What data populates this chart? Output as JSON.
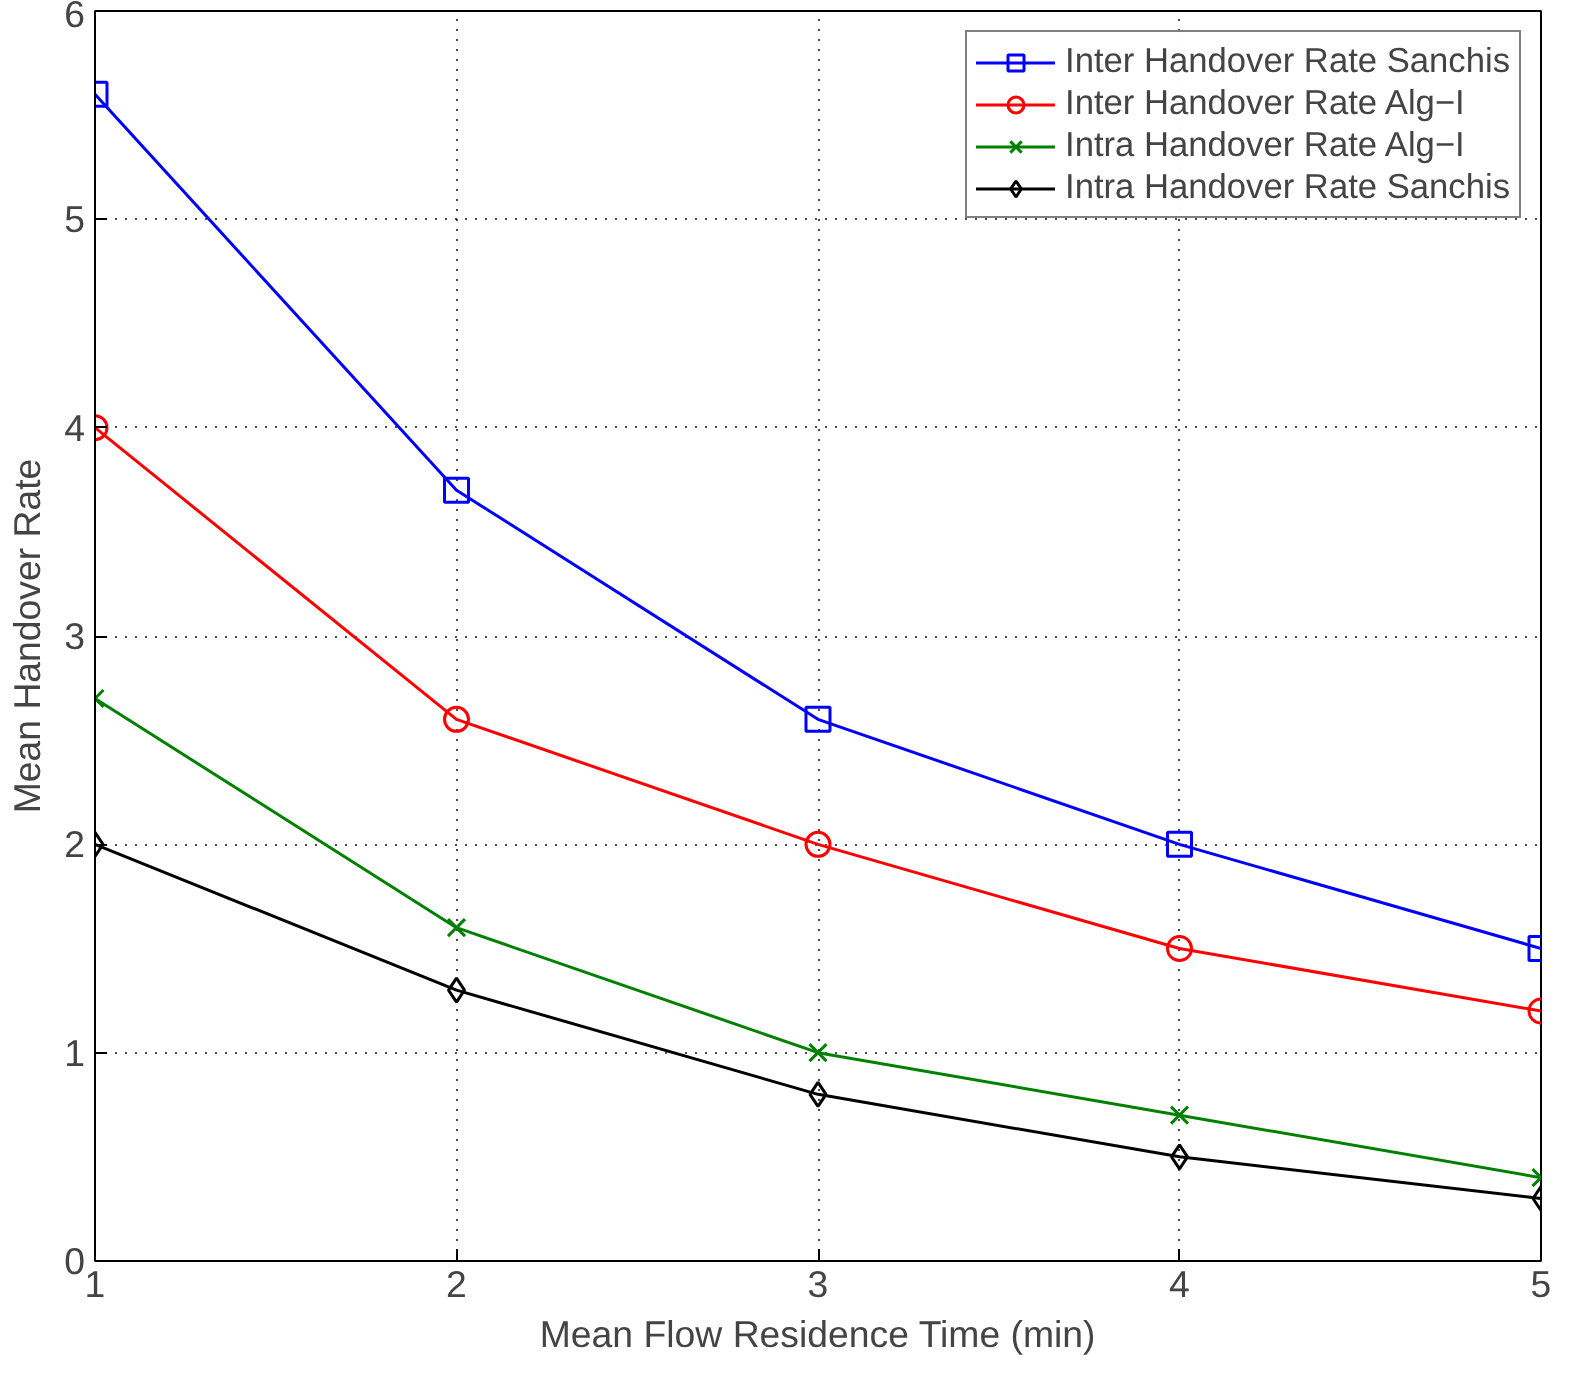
{
  "chart_data": {
    "type": "line",
    "xlabel": "Mean Flow Residence Time (min)",
    "ylabel": "Mean Handover Rate",
    "x": [
      1,
      2,
      3,
      4,
      5
    ],
    "xlim": [
      1,
      5
    ],
    "ylim": [
      0,
      6
    ],
    "xticks": [
      1,
      2,
      3,
      4,
      5
    ],
    "yticks": [
      0,
      1,
      2,
      3,
      4,
      5,
      6
    ],
    "grid": true,
    "legend": "top right",
    "line_style": "solid",
    "series": [
      {
        "name": "Inter Handover Rate Sanchis",
        "color": "#0000ff",
        "marker": "square",
        "values": [
          5.6,
          3.7,
          2.6,
          2.0,
          1.5
        ]
      },
      {
        "name": "Inter Handover Rate Alg−I",
        "color": "#ff0000",
        "marker": "circle",
        "values": [
          4.0,
          2.6,
          2.0,
          1.5,
          1.2
        ]
      },
      {
        "name": "Intra Handover Rate Alg−I",
        "color": "#008000",
        "marker": "cross",
        "values": [
          2.7,
          1.6,
          1.0,
          0.7,
          0.4
        ]
      },
      {
        "name": "Intra Handover Rate Sanchis",
        "color": "#000000",
        "marker": "diamond",
        "values": [
          2.0,
          1.3,
          0.8,
          0.5,
          0.3
        ]
      }
    ]
  }
}
